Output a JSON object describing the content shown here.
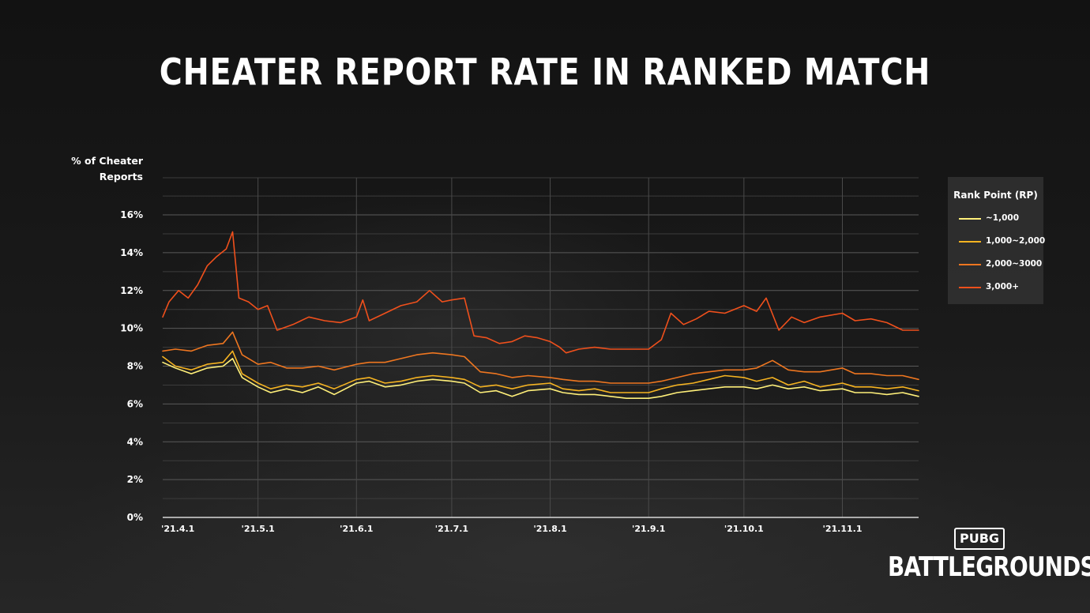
{
  "title": "CHEATER REPORT RATE IN RANKED MATCH",
  "logo": {
    "badge": "PUBG",
    "word": "BATTLEGROUNDS"
  },
  "chart_data": {
    "type": "line",
    "title": "CHEATER REPORT RATE IN RANKED MATCH",
    "ylabel_lines": [
      "% of Cheater",
      "Reports"
    ],
    "ylim": [
      0,
      16
    ],
    "y_ticks": [
      "0%",
      "2%",
      "4%",
      "6%",
      "8%",
      "10%",
      "12%",
      "14%",
      "16%"
    ],
    "x_ticks": [
      "'21.4.1",
      "'21.5.1",
      "'21.6.1",
      "'21.7.1",
      "'21.8.1",
      "'21.9.1",
      "'21.10.1",
      "'21.11.1"
    ],
    "x_tick_dates": [
      "2021-04-01",
      "2021-05-01",
      "2021-06-01",
      "2021-07-01",
      "2021-08-01",
      "2021-09-01",
      "2021-10-01",
      "2021-11-01"
    ],
    "x_range": [
      "2021-04-01",
      "2021-11-25"
    ],
    "grid": true,
    "legend_title": "Rank Point (RP)",
    "legend_position": "right",
    "series": [
      {
        "name": "~1,000",
        "color": "#fff07a",
        "points": [
          [
            "2021-04-01",
            8.2
          ],
          [
            "2021-04-05",
            7.9
          ],
          [
            "2021-04-10",
            7.6
          ],
          [
            "2021-04-15",
            7.9
          ],
          [
            "2021-04-20",
            8.0
          ],
          [
            "2021-04-23",
            8.4
          ],
          [
            "2021-04-26",
            7.4
          ],
          [
            "2021-05-01",
            6.9
          ],
          [
            "2021-05-05",
            6.6
          ],
          [
            "2021-05-10",
            6.8
          ],
          [
            "2021-05-15",
            6.6
          ],
          [
            "2021-05-20",
            6.9
          ],
          [
            "2021-05-25",
            6.5
          ],
          [
            "2021-06-01",
            7.1
          ],
          [
            "2021-06-05",
            7.2
          ],
          [
            "2021-06-10",
            6.9
          ],
          [
            "2021-06-15",
            7.0
          ],
          [
            "2021-06-20",
            7.2
          ],
          [
            "2021-06-25",
            7.3
          ],
          [
            "2021-07-01",
            7.2
          ],
          [
            "2021-07-05",
            7.1
          ],
          [
            "2021-07-10",
            6.6
          ],
          [
            "2021-07-15",
            6.7
          ],
          [
            "2021-07-20",
            6.4
          ],
          [
            "2021-07-25",
            6.7
          ],
          [
            "2021-08-01",
            6.8
          ],
          [
            "2021-08-05",
            6.6
          ],
          [
            "2021-08-10",
            6.5
          ],
          [
            "2021-08-15",
            6.5
          ],
          [
            "2021-08-20",
            6.4
          ],
          [
            "2021-08-25",
            6.3
          ],
          [
            "2021-09-01",
            6.3
          ],
          [
            "2021-09-05",
            6.4
          ],
          [
            "2021-09-10",
            6.6
          ],
          [
            "2021-09-15",
            6.7
          ],
          [
            "2021-09-20",
            6.8
          ],
          [
            "2021-09-25",
            6.9
          ],
          [
            "2021-10-01",
            6.9
          ],
          [
            "2021-10-05",
            6.8
          ],
          [
            "2021-10-10",
            7.0
          ],
          [
            "2021-10-15",
            6.8
          ],
          [
            "2021-10-20",
            6.9
          ],
          [
            "2021-10-25",
            6.7
          ],
          [
            "2021-11-01",
            6.8
          ],
          [
            "2021-11-05",
            6.6
          ],
          [
            "2021-11-10",
            6.6
          ],
          [
            "2021-11-15",
            6.5
          ],
          [
            "2021-11-20",
            6.6
          ],
          [
            "2021-11-25",
            6.4
          ]
        ]
      },
      {
        "name": "1,000~2,000",
        "color": "#f5b321",
        "points": [
          [
            "2021-04-01",
            8.5
          ],
          [
            "2021-04-05",
            8.0
          ],
          [
            "2021-04-10",
            7.8
          ],
          [
            "2021-04-15",
            8.1
          ],
          [
            "2021-04-20",
            8.2
          ],
          [
            "2021-04-23",
            8.8
          ],
          [
            "2021-04-26",
            7.6
          ],
          [
            "2021-05-01",
            7.1
          ],
          [
            "2021-05-05",
            6.8
          ],
          [
            "2021-05-10",
            7.0
          ],
          [
            "2021-05-15",
            6.9
          ],
          [
            "2021-05-20",
            7.1
          ],
          [
            "2021-05-25",
            6.8
          ],
          [
            "2021-06-01",
            7.3
          ],
          [
            "2021-06-05",
            7.4
          ],
          [
            "2021-06-10",
            7.1
          ],
          [
            "2021-06-15",
            7.2
          ],
          [
            "2021-06-20",
            7.4
          ],
          [
            "2021-06-25",
            7.5
          ],
          [
            "2021-07-01",
            7.4
          ],
          [
            "2021-07-05",
            7.3
          ],
          [
            "2021-07-10",
            6.9
          ],
          [
            "2021-07-15",
            7.0
          ],
          [
            "2021-07-20",
            6.8
          ],
          [
            "2021-07-25",
            7.0
          ],
          [
            "2021-08-01",
            7.1
          ],
          [
            "2021-08-05",
            6.8
          ],
          [
            "2021-08-10",
            6.7
          ],
          [
            "2021-08-15",
            6.8
          ],
          [
            "2021-08-20",
            6.6
          ],
          [
            "2021-08-25",
            6.6
          ],
          [
            "2021-09-01",
            6.6
          ],
          [
            "2021-09-05",
            6.8
          ],
          [
            "2021-09-10",
            7.0
          ],
          [
            "2021-09-15",
            7.1
          ],
          [
            "2021-09-20",
            7.3
          ],
          [
            "2021-09-25",
            7.5
          ],
          [
            "2021-10-01",
            7.4
          ],
          [
            "2021-10-05",
            7.2
          ],
          [
            "2021-10-10",
            7.4
          ],
          [
            "2021-10-15",
            7.0
          ],
          [
            "2021-10-20",
            7.2
          ],
          [
            "2021-10-25",
            6.9
          ],
          [
            "2021-11-01",
            7.1
          ],
          [
            "2021-11-05",
            6.9
          ],
          [
            "2021-11-10",
            6.9
          ],
          [
            "2021-11-15",
            6.8
          ],
          [
            "2021-11-20",
            6.9
          ],
          [
            "2021-11-25",
            6.7
          ]
        ]
      },
      {
        "name": "2,000~3000",
        "color": "#ee7620",
        "points": [
          [
            "2021-04-01",
            8.8
          ],
          [
            "2021-04-05",
            8.9
          ],
          [
            "2021-04-10",
            8.8
          ],
          [
            "2021-04-15",
            9.1
          ],
          [
            "2021-04-20",
            9.2
          ],
          [
            "2021-04-23",
            9.8
          ],
          [
            "2021-04-26",
            8.6
          ],
          [
            "2021-05-01",
            8.1
          ],
          [
            "2021-05-05",
            8.2
          ],
          [
            "2021-05-10",
            7.9
          ],
          [
            "2021-05-15",
            7.9
          ],
          [
            "2021-05-20",
            8.0
          ],
          [
            "2021-05-25",
            7.8
          ],
          [
            "2021-06-01",
            8.1
          ],
          [
            "2021-06-05",
            8.2
          ],
          [
            "2021-06-10",
            8.2
          ],
          [
            "2021-06-15",
            8.4
          ],
          [
            "2021-06-20",
            8.6
          ],
          [
            "2021-06-25",
            8.7
          ],
          [
            "2021-07-01",
            8.6
          ],
          [
            "2021-07-05",
            8.5
          ],
          [
            "2021-07-10",
            7.7
          ],
          [
            "2021-07-15",
            7.6
          ],
          [
            "2021-07-20",
            7.4
          ],
          [
            "2021-07-25",
            7.5
          ],
          [
            "2021-08-01",
            7.4
          ],
          [
            "2021-08-05",
            7.3
          ],
          [
            "2021-08-10",
            7.2
          ],
          [
            "2021-08-15",
            7.2
          ],
          [
            "2021-08-20",
            7.1
          ],
          [
            "2021-08-25",
            7.1
          ],
          [
            "2021-09-01",
            7.1
          ],
          [
            "2021-09-05",
            7.2
          ],
          [
            "2021-09-10",
            7.4
          ],
          [
            "2021-09-15",
            7.6
          ],
          [
            "2021-09-20",
            7.7
          ],
          [
            "2021-09-25",
            7.8
          ],
          [
            "2021-10-01",
            7.8
          ],
          [
            "2021-10-05",
            7.9
          ],
          [
            "2021-10-10",
            8.3
          ],
          [
            "2021-10-15",
            7.8
          ],
          [
            "2021-10-20",
            7.7
          ],
          [
            "2021-10-25",
            7.7
          ],
          [
            "2021-11-01",
            7.9
          ],
          [
            "2021-11-05",
            7.6
          ],
          [
            "2021-11-10",
            7.6
          ],
          [
            "2021-11-15",
            7.5
          ],
          [
            "2021-11-20",
            7.5
          ],
          [
            "2021-11-25",
            7.3
          ]
        ]
      },
      {
        "name": "3,000+",
        "color": "#f0501c",
        "points": [
          [
            "2021-04-01",
            10.6
          ],
          [
            "2021-04-03",
            11.4
          ],
          [
            "2021-04-06",
            12.0
          ],
          [
            "2021-04-09",
            11.6
          ],
          [
            "2021-04-12",
            12.3
          ],
          [
            "2021-04-15",
            13.3
          ],
          [
            "2021-04-18",
            13.8
          ],
          [
            "2021-04-21",
            14.2
          ],
          [
            "2021-04-23",
            15.1
          ],
          [
            "2021-04-25",
            11.6
          ],
          [
            "2021-04-28",
            11.4
          ],
          [
            "2021-05-01",
            11.0
          ],
          [
            "2021-05-04",
            11.2
          ],
          [
            "2021-05-07",
            9.9
          ],
          [
            "2021-05-12",
            10.2
          ],
          [
            "2021-05-17",
            10.6
          ],
          [
            "2021-05-22",
            10.4
          ],
          [
            "2021-05-27",
            10.3
          ],
          [
            "2021-06-01",
            10.6
          ],
          [
            "2021-06-03",
            11.5
          ],
          [
            "2021-06-05",
            10.4
          ],
          [
            "2021-06-10",
            10.8
          ],
          [
            "2021-06-15",
            11.2
          ],
          [
            "2021-06-20",
            11.4
          ],
          [
            "2021-06-24",
            12.0
          ],
          [
            "2021-06-28",
            11.4
          ],
          [
            "2021-07-01",
            11.5
          ],
          [
            "2021-07-05",
            11.6
          ],
          [
            "2021-07-08",
            9.6
          ],
          [
            "2021-07-12",
            9.5
          ],
          [
            "2021-07-16",
            9.2
          ],
          [
            "2021-07-20",
            9.3
          ],
          [
            "2021-07-24",
            9.6
          ],
          [
            "2021-07-28",
            9.5
          ],
          [
            "2021-08-01",
            9.3
          ],
          [
            "2021-08-04",
            9.0
          ],
          [
            "2021-08-06",
            8.7
          ],
          [
            "2021-08-10",
            8.9
          ],
          [
            "2021-08-15",
            9.0
          ],
          [
            "2021-08-20",
            8.9
          ],
          [
            "2021-08-25",
            8.9
          ],
          [
            "2021-09-01",
            8.9
          ],
          [
            "2021-09-05",
            9.4
          ],
          [
            "2021-09-08",
            10.8
          ],
          [
            "2021-09-12",
            10.2
          ],
          [
            "2021-09-16",
            10.5
          ],
          [
            "2021-09-20",
            10.9
          ],
          [
            "2021-09-25",
            10.8
          ],
          [
            "2021-10-01",
            11.2
          ],
          [
            "2021-10-05",
            10.9
          ],
          [
            "2021-10-08",
            11.6
          ],
          [
            "2021-10-12",
            9.9
          ],
          [
            "2021-10-16",
            10.6
          ],
          [
            "2021-10-20",
            10.3
          ],
          [
            "2021-10-25",
            10.6
          ],
          [
            "2021-11-01",
            10.8
          ],
          [
            "2021-11-05",
            10.4
          ],
          [
            "2021-11-10",
            10.5
          ],
          [
            "2021-11-15",
            10.3
          ],
          [
            "2021-11-20",
            9.9
          ],
          [
            "2021-11-25",
            9.9
          ]
        ]
      }
    ]
  }
}
